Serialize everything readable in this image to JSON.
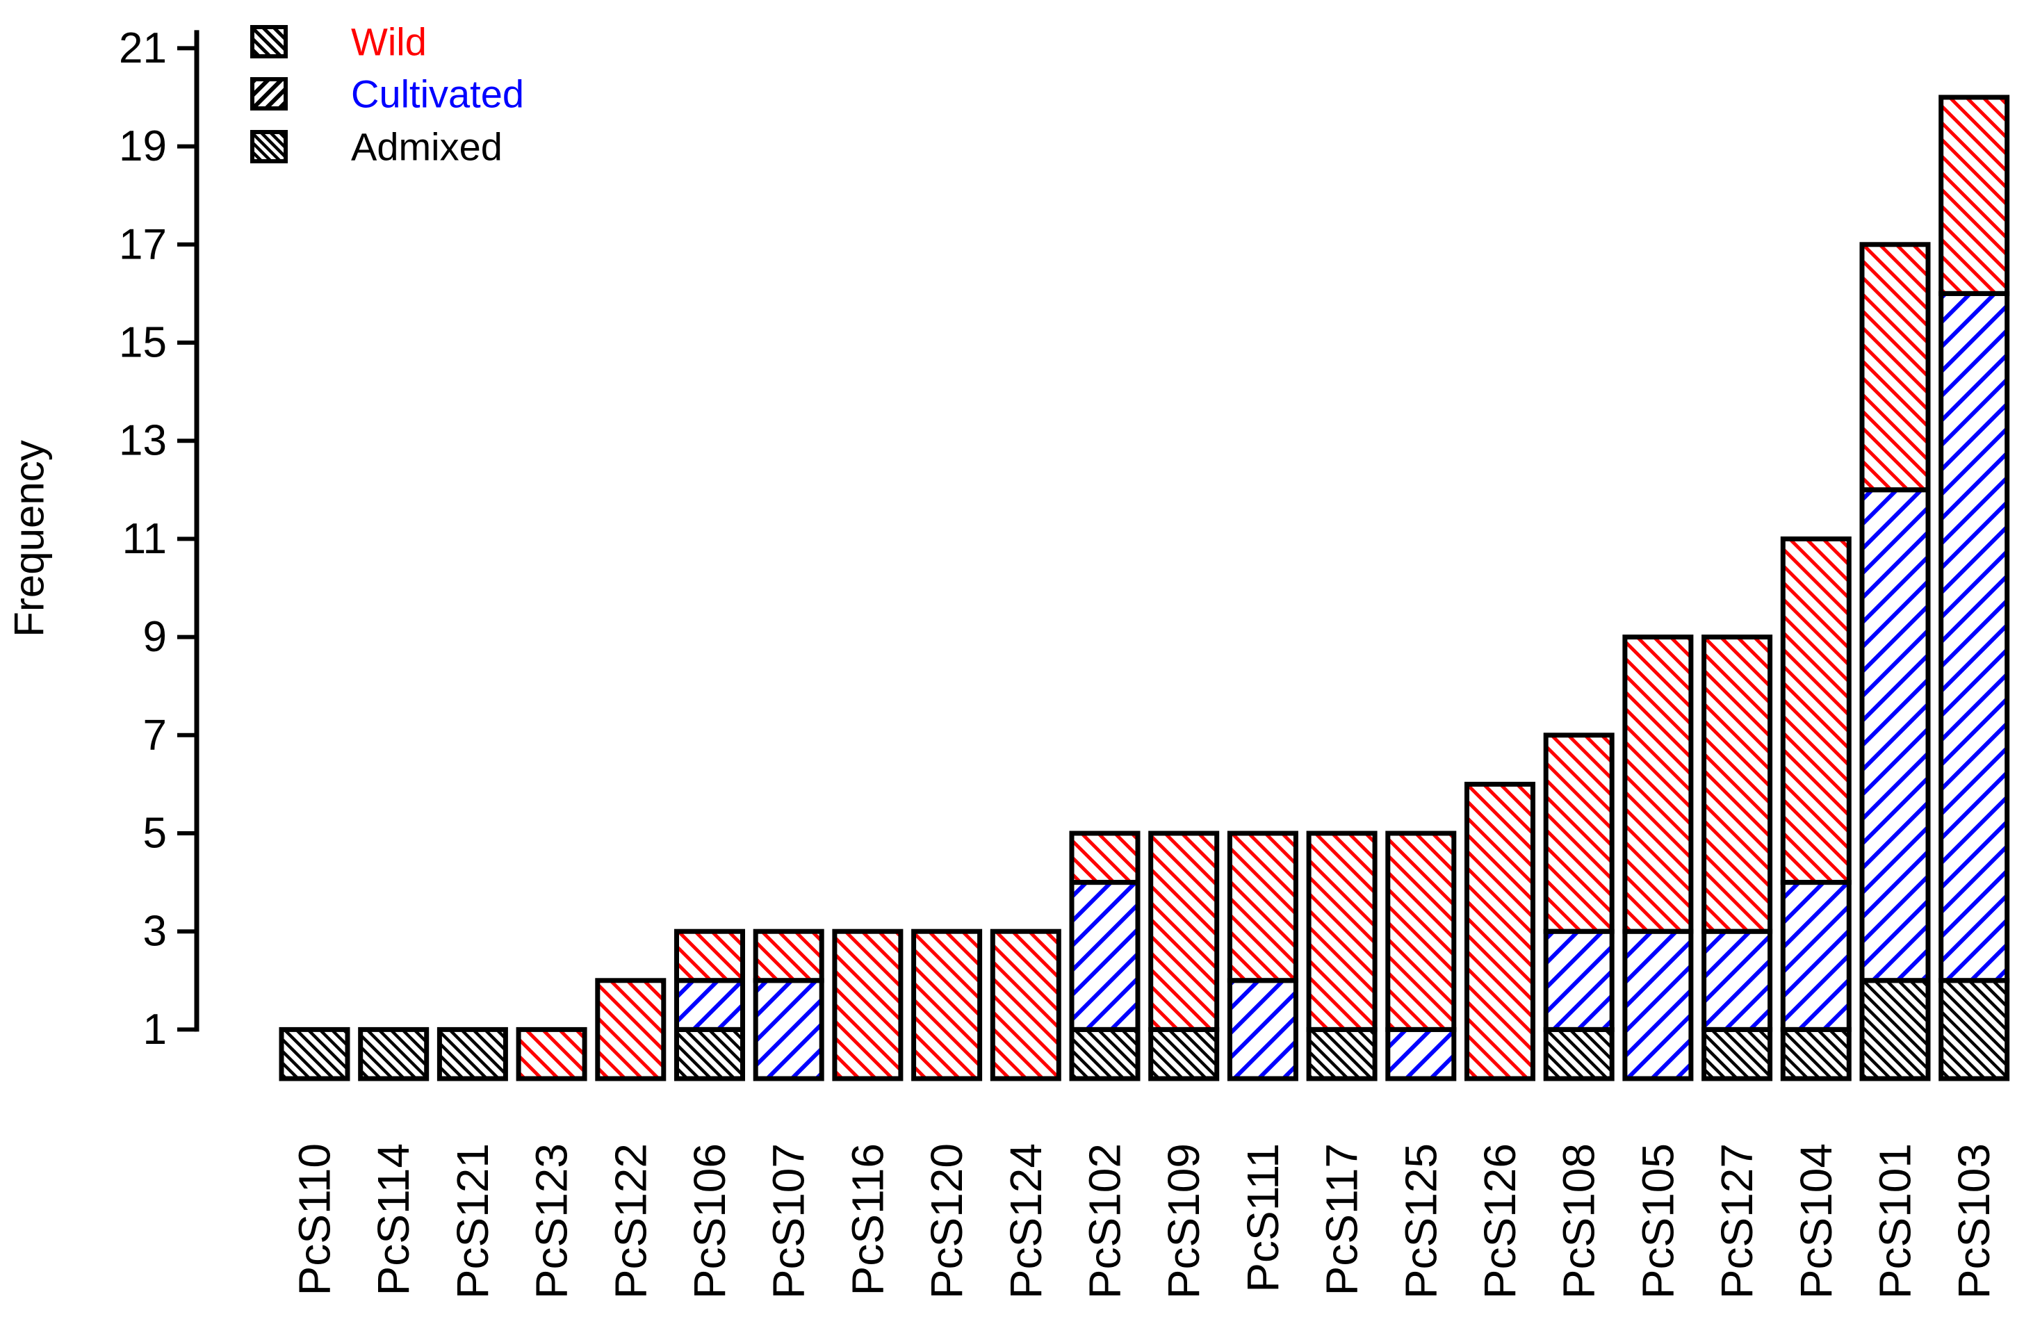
{
  "figure": {
    "background": "#ffffff",
    "axis_color": "#000000"
  },
  "chart_data": {
    "type": "bar",
    "stacked": true,
    "title": "",
    "xlabel": "",
    "ylabel": "Frequency",
    "ylim": [
      0,
      21
    ],
    "yticks": [
      1,
      3,
      5,
      7,
      9,
      11,
      13,
      15,
      17,
      19,
      21
    ],
    "grid": false,
    "legend_position": "top-left",
    "categories": [
      "PcS110",
      "PcS114",
      "PcS121",
      "PcS123",
      "PcS122",
      "PcS106",
      "PcS107",
      "PcS116",
      "PcS120",
      "PcS124",
      "PcS102",
      "PcS109",
      "PcS111",
      "PcS117",
      "PcS125",
      "PcS126",
      "PcS108",
      "PcS105",
      "PcS127",
      "PcS104",
      "PcS101",
      "PcS103"
    ],
    "series": [
      {
        "name": "Wild",
        "color": "#ff0000",
        "hatch": "\\",
        "values": [
          0,
          0,
          0,
          1,
          2,
          1,
          1,
          3,
          3,
          3,
          1,
          4,
          3,
          4,
          4,
          6,
          4,
          6,
          6,
          7,
          5,
          4
        ]
      },
      {
        "name": "Cultivated",
        "color": "#0000ff",
        "hatch": "/",
        "values": [
          0,
          0,
          0,
          0,
          0,
          1,
          2,
          0,
          0,
          0,
          3,
          0,
          2,
          0,
          1,
          0,
          2,
          3,
          2,
          3,
          10,
          14
        ]
      },
      {
        "name": "Admixed",
        "color": "#000000",
        "hatch": "\\",
        "values": [
          1,
          1,
          1,
          0,
          0,
          1,
          0,
          0,
          0,
          0,
          1,
          1,
          0,
          1,
          0,
          0,
          1,
          0,
          1,
          1,
          2,
          2
        ]
      }
    ],
    "stack_order_bottom_to_top": [
      "Admixed",
      "Cultivated",
      "Wild"
    ],
    "totals": [
      1,
      1,
      1,
      1,
      2,
      3,
      3,
      3,
      3,
      3,
      5,
      5,
      5,
      5,
      5,
      6,
      7,
      9,
      9,
      11,
      17,
      20
    ]
  },
  "legend": {
    "entries": [
      {
        "label": "Wild",
        "text_color": "#ff0000",
        "swatch": "black-backslash-hatch"
      },
      {
        "label": "Cultivated",
        "text_color": "#0000ff",
        "swatch": "black-slash-hatch"
      },
      {
        "label": "Admixed",
        "text_color": "#000000",
        "swatch": "black-backslash-hatch-dense"
      }
    ]
  }
}
